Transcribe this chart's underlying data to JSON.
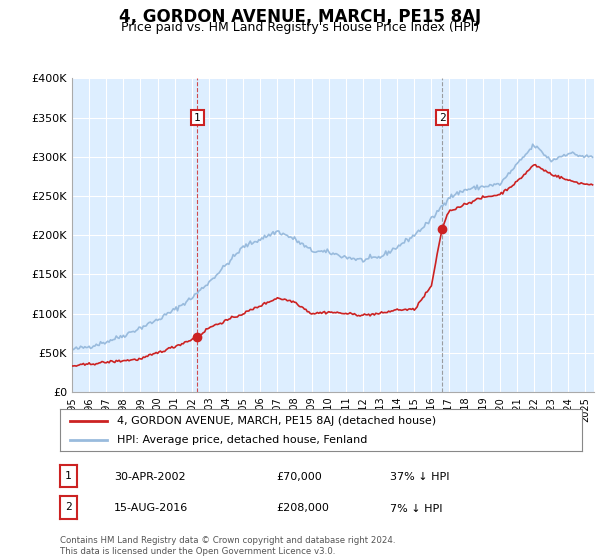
{
  "title": "4, GORDON AVENUE, MARCH, PE15 8AJ",
  "subtitle": "Price paid vs. HM Land Registry's House Price Index (HPI)",
  "title_fontsize": 12,
  "subtitle_fontsize": 9,
  "ylim": [
    0,
    400000
  ],
  "xlim_start": 1995.0,
  "xlim_end": 2025.5,
  "yticks": [
    0,
    50000,
    100000,
    150000,
    200000,
    250000,
    300000,
    350000,
    400000
  ],
  "ytick_labels": [
    "£0",
    "£50K",
    "£100K",
    "£150K",
    "£200K",
    "£250K",
    "£300K",
    "£350K",
    "£400K"
  ],
  "xtick_years": [
    1995,
    1996,
    1997,
    1998,
    1999,
    2000,
    2001,
    2002,
    2003,
    2004,
    2005,
    2006,
    2007,
    2008,
    2009,
    2010,
    2011,
    2012,
    2013,
    2014,
    2015,
    2016,
    2017,
    2018,
    2019,
    2020,
    2021,
    2022,
    2023,
    2024,
    2025
  ],
  "hpi_color": "#99bbdd",
  "price_color": "#cc2222",
  "plot_bg_color": "#ddeeff",
  "grid_color": "#ffffff",
  "marker1_x": 2002.33,
  "marker1_y": 70000,
  "marker2_x": 2016.62,
  "marker2_y": 208000,
  "marker_vline_color": "#cc2222",
  "marker2_vline_color": "#888888",
  "legend_line1": "4, GORDON AVENUE, MARCH, PE15 8AJ (detached house)",
  "legend_line2": "HPI: Average price, detached house, Fenland",
  "annot1_date": "30-APR-2002",
  "annot1_price": "£70,000",
  "annot1_hpi": "37% ↓ HPI",
  "annot2_date": "15-AUG-2016",
  "annot2_price": "£208,000",
  "annot2_hpi": "7% ↓ HPI",
  "footer": "Contains HM Land Registry data © Crown copyright and database right 2024.\nThis data is licensed under the Open Government Licence v3.0."
}
